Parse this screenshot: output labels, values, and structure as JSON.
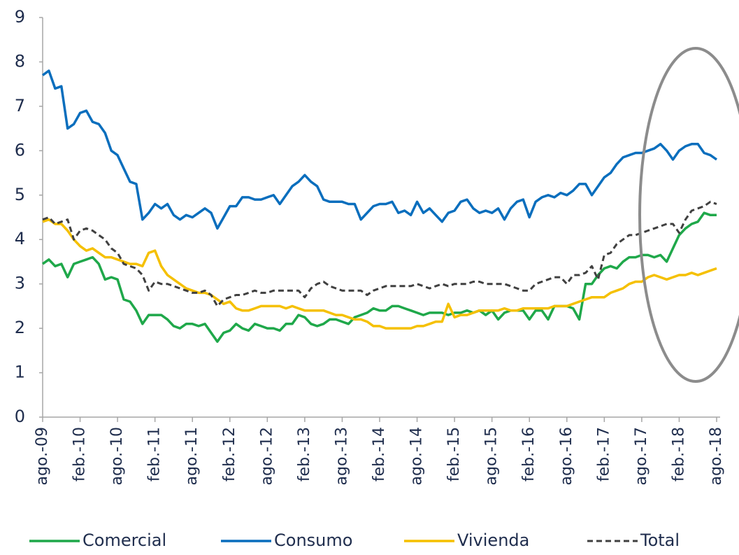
{
  "chart_data": {
    "type": "line",
    "categories": [
      "ago.-09",
      null,
      null,
      null,
      null,
      null,
      "feb.-10",
      null,
      null,
      null,
      null,
      null,
      "ago.-10",
      null,
      null,
      null,
      null,
      null,
      "feb.-11",
      null,
      null,
      null,
      null,
      null,
      "ago.-11",
      null,
      null,
      null,
      null,
      null,
      "feb.-12",
      null,
      null,
      null,
      null,
      null,
      "ago.-12",
      null,
      null,
      null,
      null,
      null,
      "feb.-13",
      null,
      null,
      null,
      null,
      null,
      "ago.-13",
      null,
      null,
      null,
      null,
      null,
      "feb.-14",
      null,
      null,
      null,
      null,
      null,
      "ago.-14",
      null,
      null,
      null,
      null,
      null,
      "feb.-15",
      null,
      null,
      null,
      null,
      null,
      "ago.-15",
      null,
      null,
      null,
      null,
      null,
      "feb.-16",
      null,
      null,
      null,
      null,
      null,
      "ago.-16",
      null,
      null,
      null,
      null,
      null,
      "feb.-17",
      null,
      null,
      null,
      null,
      null,
      "ago.-17",
      null,
      null,
      null,
      null,
      null,
      "feb.-18",
      null,
      null,
      null,
      null,
      null,
      "ago.-18"
    ],
    "series": [
      {
        "name": "Comercial",
        "color": "#1fa84a",
        "dash": false,
        "values": [
          3.45,
          3.55,
          3.4,
          3.45,
          3.15,
          3.45,
          3.5,
          3.55,
          3.6,
          3.45,
          3.1,
          3.15,
          3.1,
          2.65,
          2.6,
          2.4,
          2.1,
          2.3,
          2.3,
          2.3,
          2.2,
          2.05,
          2.0,
          2.1,
          2.1,
          2.05,
          2.1,
          1.9,
          1.7,
          1.9,
          1.95,
          2.1,
          2.0,
          1.95,
          2.1,
          2.05,
          2.0,
          2.0,
          1.95,
          2.1,
          2.1,
          2.3,
          2.25,
          2.1,
          2.05,
          2.1,
          2.2,
          2.2,
          2.15,
          2.1,
          2.25,
          2.3,
          2.35,
          2.45,
          2.4,
          2.4,
          2.5,
          2.5,
          2.45,
          2.4,
          2.35,
          2.3,
          2.35,
          2.35,
          2.35,
          2.3,
          2.35,
          2.35,
          2.4,
          2.35,
          2.4,
          2.3,
          2.4,
          2.2,
          2.35,
          2.4,
          2.4,
          2.4,
          2.2,
          2.4,
          2.4,
          2.2,
          2.5,
          2.5,
          2.5,
          2.45,
          2.2,
          3.0,
          3.0,
          3.2,
          3.35,
          3.4,
          3.35,
          3.5,
          3.6,
          3.6,
          3.65,
          3.65,
          3.6,
          3.65,
          3.5,
          3.8,
          4.1,
          4.25,
          4.35,
          4.4,
          4.6,
          4.55,
          4.55
        ]
      },
      {
        "name": "Consumo",
        "color": "#0a6ebd",
        "dash": false,
        "values": [
          7.7,
          7.8,
          7.4,
          7.45,
          6.5,
          6.6,
          6.85,
          6.9,
          6.65,
          6.6,
          6.4,
          6.0,
          5.9,
          5.6,
          5.3,
          5.25,
          4.45,
          4.6,
          4.8,
          4.7,
          4.8,
          4.55,
          4.45,
          4.55,
          4.5,
          4.6,
          4.7,
          4.6,
          4.25,
          4.5,
          4.75,
          4.75,
          4.95,
          4.95,
          4.9,
          4.9,
          4.95,
          5.0,
          4.8,
          5.0,
          5.2,
          5.3,
          5.45,
          5.3,
          5.2,
          4.9,
          4.85,
          4.85,
          4.85,
          4.8,
          4.8,
          4.45,
          4.6,
          4.75,
          4.8,
          4.8,
          4.85,
          4.6,
          4.65,
          4.55,
          4.85,
          4.6,
          4.7,
          4.55,
          4.4,
          4.6,
          4.65,
          4.85,
          4.9,
          4.7,
          4.6,
          4.65,
          4.6,
          4.7,
          4.45,
          4.7,
          4.85,
          4.9,
          4.5,
          4.85,
          4.95,
          5.0,
          4.95,
          5.05,
          5.0,
          5.1,
          5.25,
          5.25,
          5.0,
          5.2,
          5.4,
          5.5,
          5.7,
          5.85,
          5.9,
          5.95,
          5.95,
          6.0,
          6.05,
          6.15,
          6.0,
          5.8,
          6.0,
          6.1,
          6.15,
          6.15,
          5.95,
          5.9,
          5.8
        ]
      },
      {
        "name": "Vivienda",
        "color": "#f5c000",
        "dash": false,
        "values": [
          4.4,
          4.45,
          4.35,
          4.35,
          4.2,
          4.0,
          3.85,
          3.75,
          3.8,
          3.7,
          3.6,
          3.6,
          3.55,
          3.5,
          3.45,
          3.45,
          3.4,
          3.7,
          3.75,
          3.4,
          3.2,
          3.1,
          3.0,
          2.9,
          2.85,
          2.8,
          2.8,
          2.75,
          2.65,
          2.55,
          2.6,
          2.45,
          2.4,
          2.4,
          2.45,
          2.5,
          2.5,
          2.5,
          2.5,
          2.45,
          2.5,
          2.45,
          2.4,
          2.4,
          2.4,
          2.4,
          2.35,
          2.3,
          2.3,
          2.25,
          2.2,
          2.2,
          2.15,
          2.05,
          2.05,
          2.0,
          2.0,
          2.0,
          2.0,
          2.0,
          2.05,
          2.05,
          2.1,
          2.15,
          2.15,
          2.55,
          2.25,
          2.3,
          2.3,
          2.35,
          2.4,
          2.4,
          2.4,
          2.4,
          2.45,
          2.4,
          2.4,
          2.45,
          2.45,
          2.45,
          2.45,
          2.45,
          2.5,
          2.5,
          2.5,
          2.55,
          2.6,
          2.65,
          2.7,
          2.7,
          2.7,
          2.8,
          2.85,
          2.9,
          3.0,
          3.05,
          3.05,
          3.15,
          3.2,
          3.15,
          3.1,
          3.15,
          3.2,
          3.2,
          3.25,
          3.2,
          3.25,
          3.3,
          3.35
        ]
      },
      {
        "name": "Total",
        "color": "#404040",
        "dash": true,
        "values": [
          4.45,
          4.5,
          4.35,
          4.4,
          4.45,
          4.0,
          4.2,
          4.25,
          4.2,
          4.1,
          4.0,
          3.8,
          3.7,
          3.45,
          3.4,
          3.35,
          3.2,
          2.85,
          3.05,
          3.0,
          3.0,
          2.95,
          2.9,
          2.85,
          2.8,
          2.8,
          2.85,
          2.75,
          2.5,
          2.65,
          2.7,
          2.75,
          2.75,
          2.8,
          2.85,
          2.8,
          2.8,
          2.85,
          2.85,
          2.85,
          2.85,
          2.85,
          2.7,
          2.9,
          3.0,
          3.05,
          2.95,
          2.9,
          2.85,
          2.85,
          2.85,
          2.85,
          2.75,
          2.85,
          2.9,
          2.95,
          2.95,
          2.95,
          2.95,
          2.95,
          3.0,
          2.95,
          2.9,
          2.95,
          3.0,
          2.95,
          3.0,
          3.0,
          3.0,
          3.05,
          3.05,
          3.0,
          3.0,
          3.0,
          3.0,
          2.95,
          2.9,
          2.85,
          2.85,
          3.0,
          3.05,
          3.1,
          3.15,
          3.15,
          3.0,
          3.2,
          3.2,
          3.25,
          3.4,
          3.1,
          3.65,
          3.7,
          3.9,
          4.0,
          4.1,
          4.1,
          4.15,
          4.2,
          4.25,
          4.3,
          4.35,
          4.35,
          4.15,
          4.45,
          4.65,
          4.7,
          4.75,
          4.85,
          4.8
        ]
      }
    ],
    "ylim": [
      0,
      9
    ],
    "yticks": [
      0,
      1,
      2,
      3,
      4,
      5,
      6,
      7,
      8,
      9
    ],
    "grid": false,
    "legend": "bottom"
  }
}
